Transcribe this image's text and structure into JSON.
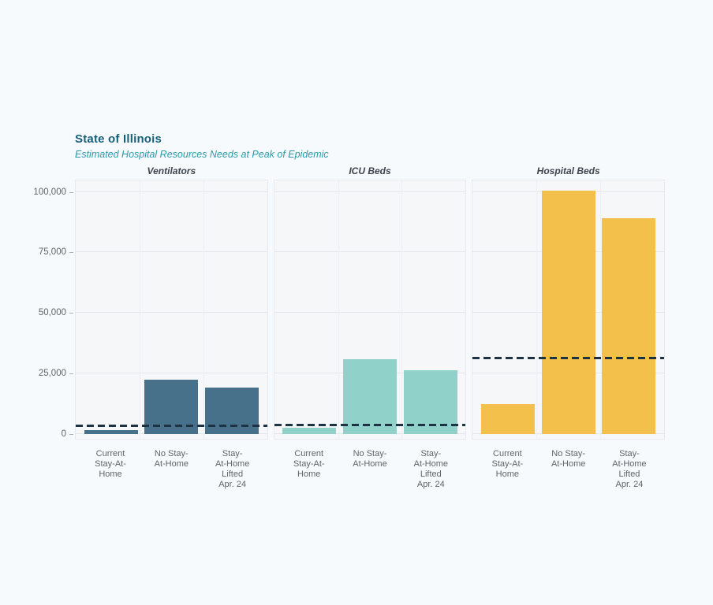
{
  "page": {
    "background_color": "#f7fafc"
  },
  "header": {
    "title": "State of Illinois",
    "subtitle": "Estimated Hospital Resources Needs at Peak of Epidemic",
    "title_color": "#17607b",
    "subtitle_color": "#2b9aa9"
  },
  "chart_data": {
    "type": "bar",
    "title": "State of Illinois",
    "subtitle": "Estimated Hospital Resources Needs at Peak of Epidemic",
    "categories": [
      "Current Stay-At-Home",
      "No Stay-At-Home",
      "Stay-At-Home Lifted Apr. 24"
    ],
    "category_label_lines": [
      [
        "Current",
        "Stay-At-",
        "Home"
      ],
      [
        "No Stay-",
        "At-Home"
      ],
      [
        "Stay-",
        "At-Home",
        "Lifted",
        "Apr. 24"
      ]
    ],
    "y_ticks": [
      0,
      25000,
      50000,
      75000,
      100000
    ],
    "y_tick_labels": [
      "0",
      "25,000",
      "50,000",
      "75,000",
      "100,000"
    ],
    "ylim": [
      0,
      106000
    ],
    "grid": true,
    "legend_position": "none",
    "facets": [
      {
        "title": "Ventilators",
        "bar_color": "#47708a",
        "values": [
          1700,
          22600,
          19300
        ],
        "capacity_line": 3400
      },
      {
        "title": "ICU Beds",
        "bar_color": "#90d1c9",
        "values": [
          2500,
          31000,
          26200
        ],
        "capacity_line": 3900
      },
      {
        "title": "Hospital Beds",
        "bar_color": "#f3c04c",
        "values": [
          12400,
          100500,
          89000
        ],
        "capacity_line": 31500
      }
    ],
    "reference_line_style": "dashed",
    "reference_line_color": "#1d3344",
    "panel_background": "#f6f7f9",
    "gridline_color": "#e3e6ea",
    "axis_text_color": "#5f646b"
  }
}
